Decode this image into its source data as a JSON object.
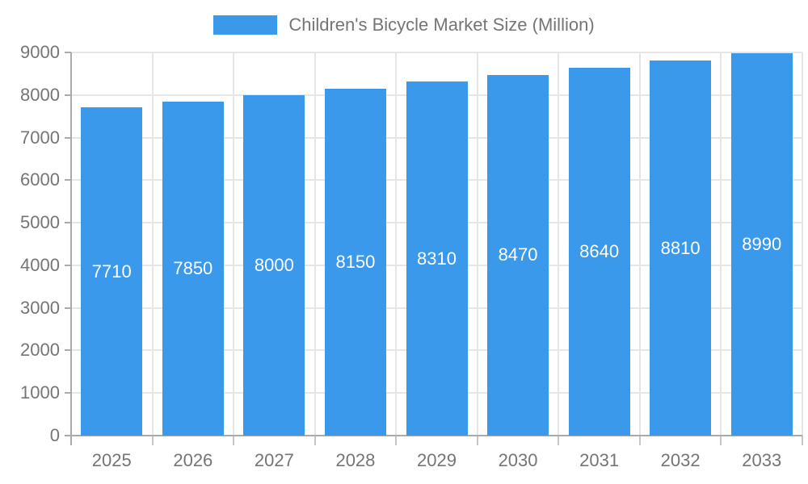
{
  "chart_data": {
    "type": "bar",
    "title": "Children's Bicycle Market Size (Million)",
    "legend_position": "top",
    "categories": [
      "2025",
      "2026",
      "2027",
      "2028",
      "2029",
      "2030",
      "2031",
      "2032",
      "2033"
    ],
    "series": [
      {
        "name": "Children's Bicycle Market Size (Million)",
        "values": [
          7710,
          7850,
          8000,
          8150,
          8310,
          8470,
          8640,
          8810,
          8990
        ]
      }
    ],
    "xlabel": "",
    "ylabel": "",
    "ylim": [
      0,
      9000
    ],
    "yticks": [
      0,
      1000,
      2000,
      3000,
      4000,
      5000,
      6000,
      7000,
      8000,
      9000
    ],
    "grid": true,
    "value_labels_shown": true,
    "colors": {
      "bar": "#3b99ec",
      "value_label": "#ffffff",
      "axis_text": "#757575",
      "grid_line": "#e6e6e6",
      "axis_line": "#aaaaaa",
      "boundary_tick": "#c6c6c6"
    }
  }
}
